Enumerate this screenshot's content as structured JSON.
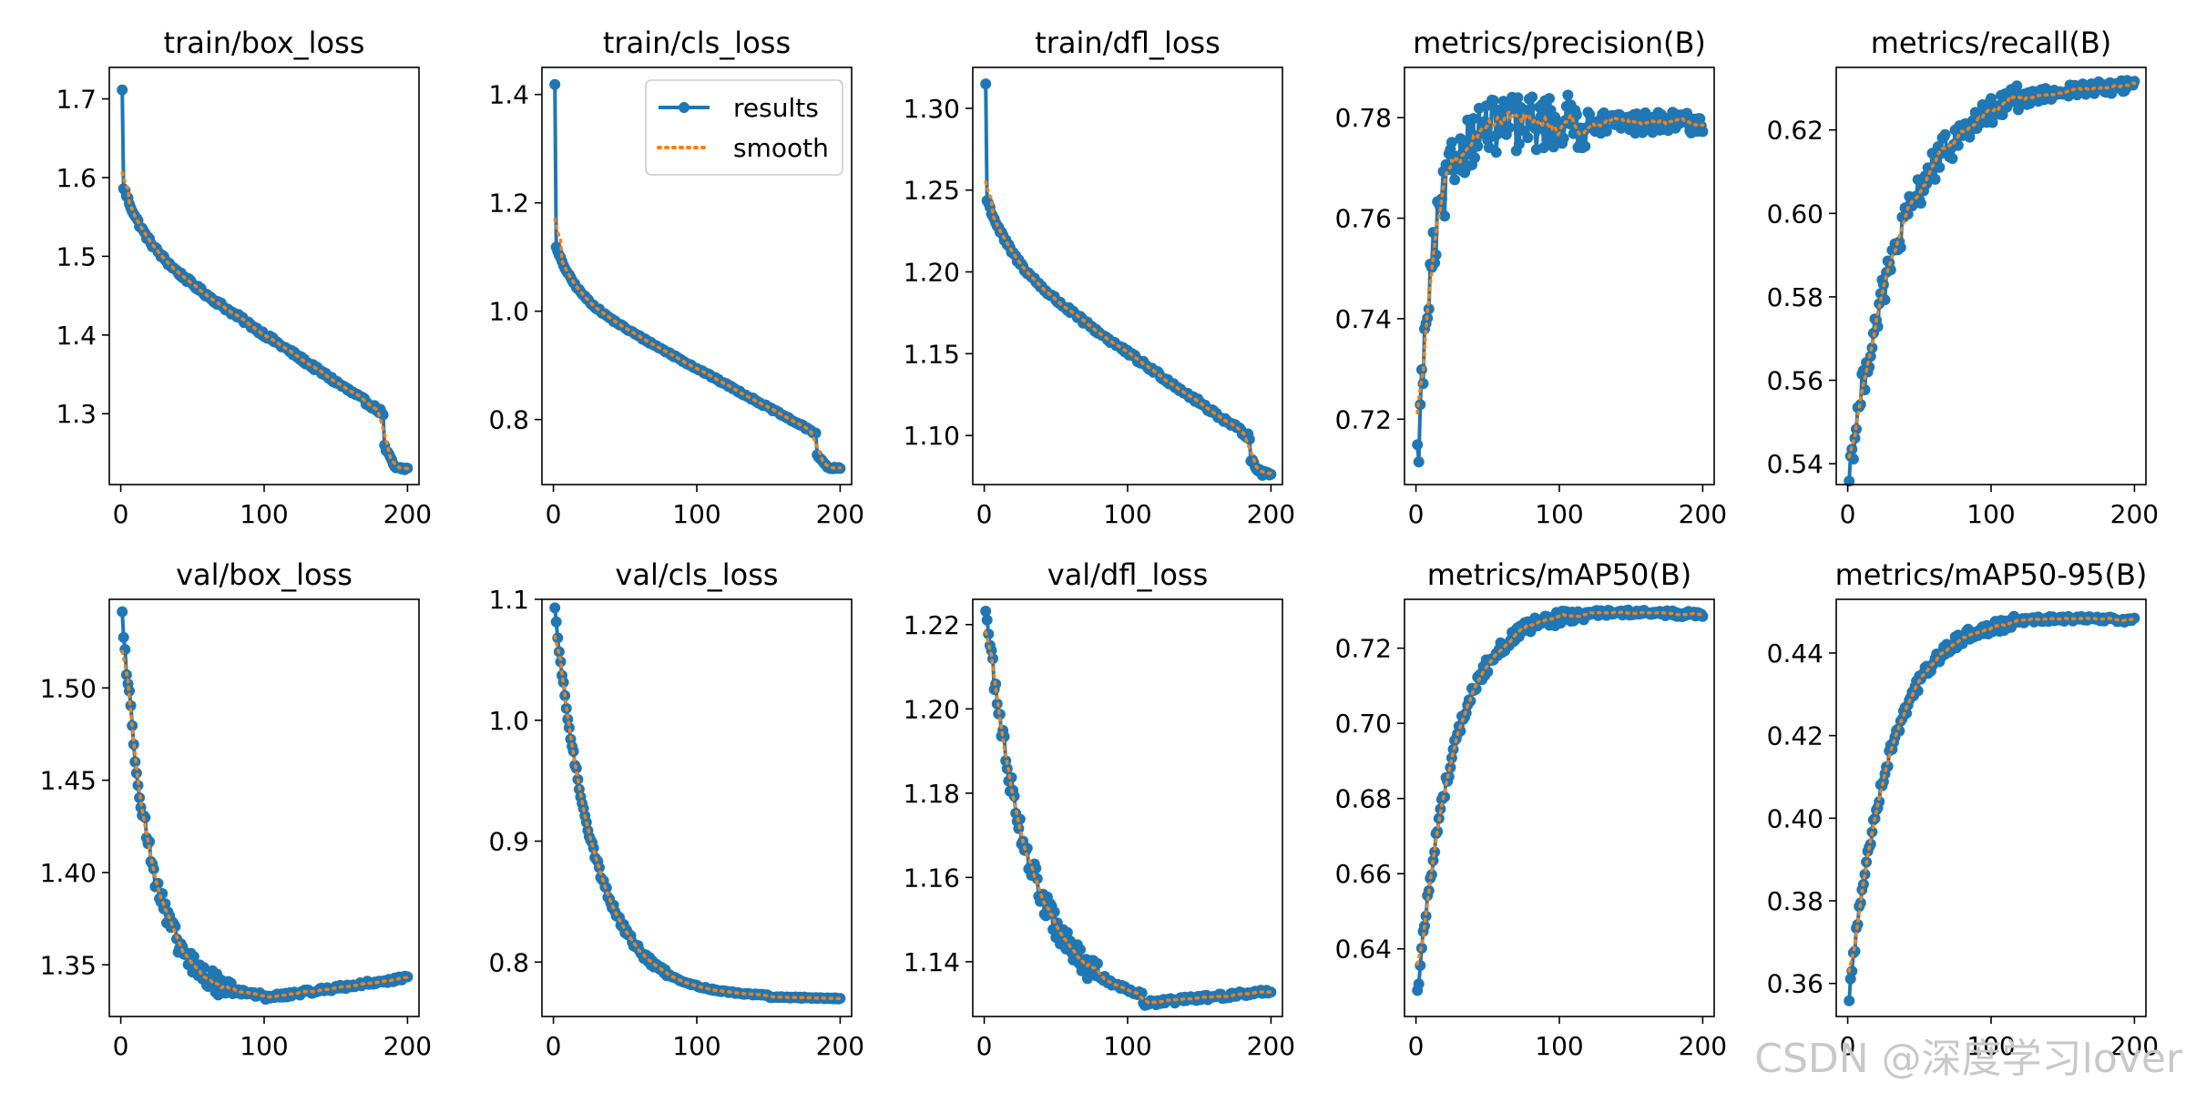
{
  "watermark": "CSDN @深度学习lover",
  "legend": {
    "results": "results",
    "smooth": "smooth"
  },
  "colors": {
    "results": "#1f77b4",
    "smooth": "#ff7f0e",
    "axis": "#000000"
  },
  "chart_data": [
    {
      "type": "line",
      "title": "train/box_loss",
      "xlim": [
        -8,
        208
      ],
      "ylim": [
        1.21,
        1.74
      ],
      "xticks": [
        0,
        100,
        200
      ],
      "yticks": [
        1.3,
        1.4,
        1.5,
        1.6,
        1.7
      ],
      "ytick_decimals": 1,
      "curve": "decay",
      "x_points": 200,
      "start": 1.71,
      "drop": [
        1.59,
        0.93
      ],
      "decay_k": 16,
      "mid_slope_end": 1.28,
      "final_step": [
        184,
        1.23
      ],
      "noise": 0.003,
      "legend": false
    },
    {
      "type": "line",
      "title": "train/cls_loss",
      "xlim": [
        -8,
        208
      ],
      "ylim": [
        0.68,
        1.45
      ],
      "xticks": [
        0,
        100,
        200
      ],
      "yticks": [
        0.8,
        1.0,
        1.2,
        1.4
      ],
      "ytick_decimals": 1,
      "curve": "decay",
      "x_points": 200,
      "start": 1.42,
      "drop": [
        1.12,
        0.55
      ],
      "decay_k": 14,
      "mid_slope_end": 0.75,
      "final_step": [
        184,
        0.71
      ],
      "noise": 0.002,
      "legend": true
    },
    {
      "type": "line",
      "title": "train/dfl_loss",
      "xlim": [
        -8,
        208
      ],
      "ylim": [
        1.07,
        1.325
      ],
      "xticks": [
        0,
        100,
        200
      ],
      "yticks": [
        1.1,
        1.15,
        1.2,
        1.25,
        1.3
      ],
      "ytick_decimals": 2,
      "curve": "decay",
      "x_points": 200,
      "start": 1.315,
      "drop": [
        1.245,
        0.6
      ],
      "decay_k": 18,
      "mid_slope_end": 1.09,
      "final_step": [
        186,
        1.077
      ],
      "noise": 0.0015,
      "legend": false
    },
    {
      "type": "line",
      "title": "metrics/precision(B)",
      "xlim": [
        -8,
        208
      ],
      "ylim": [
        0.707,
        0.79
      ],
      "xticks": [
        0,
        100,
        200
      ],
      "yticks": [
        0.72,
        0.74,
        0.76,
        0.78
      ],
      "ytick_decimals": 2,
      "curve": "rise",
      "x_points": 200,
      "start": 0.711,
      "plateau": 0.779,
      "rise_k": 12,
      "noise": 0.0035,
      "legend": false
    },
    {
      "type": "line",
      "title": "metrics/recall(B)",
      "xlim": [
        -8,
        208
      ],
      "ylim": [
        0.535,
        0.635
      ],
      "xticks": [
        0,
        100,
        200
      ],
      "yticks": [
        0.54,
        0.56,
        0.58,
        0.6,
        0.62
      ],
      "ytick_decimals": 2,
      "curve": "rise",
      "x_points": 200,
      "start": 0.538,
      "plateau": 0.631,
      "rise_k": 38,
      "noise": 0.0025,
      "legend": false
    },
    {
      "type": "line",
      "title": "val/box_loss",
      "xlim": [
        -8,
        208
      ],
      "ylim": [
        1.322,
        1.548
      ],
      "xticks": [
        0,
        100,
        200
      ],
      "yticks": [
        1.35,
        1.4,
        1.45,
        1.5
      ],
      "ytick_decimals": 2,
      "curve": "u",
      "x_points": 200,
      "start": 1.54,
      "min": 1.332,
      "min_at": 100,
      "end": 1.343,
      "decay_k": 20,
      "noise": 0.004,
      "legend": false
    },
    {
      "type": "line",
      "title": "val/cls_loss",
      "xlim": [
        -8,
        208
      ],
      "ylim": [
        0.755,
        1.1
      ],
      "xticks": [
        0,
        100,
        200
      ],
      "yticks": [
        0.8,
        0.9,
        1.0,
        1.1
      ],
      "ytick_decimals": 1,
      "curve": "u",
      "x_points": 200,
      "start": 1.09,
      "min": 0.771,
      "min_at": 150,
      "end": 0.77,
      "decay_k": 28,
      "noise": 0.002,
      "legend": false
    },
    {
      "type": "line",
      "title": "val/dfl_loss",
      "xlim": [
        -8,
        208
      ],
      "ylim": [
        1.127,
        1.226
      ],
      "xticks": [
        0,
        100,
        200
      ],
      "yticks": [
        1.14,
        1.16,
        1.18,
        1.2,
        1.22
      ],
      "ytick_decimals": 2,
      "curve": "u",
      "x_points": 200,
      "start": 1.224,
      "min": 1.13,
      "min_at": 110,
      "end": 1.133,
      "decay_k": 30,
      "noise": 0.002,
      "legend": false
    },
    {
      "type": "line",
      "title": "metrics/mAP50(B)",
      "xlim": [
        -8,
        208
      ],
      "ylim": [
        0.622,
        0.733
      ],
      "xticks": [
        0,
        100,
        200
      ],
      "yticks": [
        0.64,
        0.66,
        0.68,
        0.7,
        0.72
      ],
      "ytick_decimals": 2,
      "curve": "rise",
      "x_points": 200,
      "start": 0.628,
      "plateau": 0.73,
      "rise_k": 25,
      "end": 0.729,
      "noise": 0.0012,
      "legend": false
    },
    {
      "type": "line",
      "title": "metrics/mAP50-95(B)",
      "xlim": [
        -8,
        208
      ],
      "ylim": [
        0.352,
        0.453
      ],
      "xticks": [
        0,
        100,
        200
      ],
      "yticks": [
        0.36,
        0.38,
        0.4,
        0.42,
        0.44
      ],
      "ytick_decimals": 2,
      "curve": "rise",
      "x_points": 200,
      "start": 0.357,
      "plateau": 0.449,
      "rise_k": 28,
      "end": 0.448,
      "noise": 0.001,
      "legend": false
    }
  ]
}
